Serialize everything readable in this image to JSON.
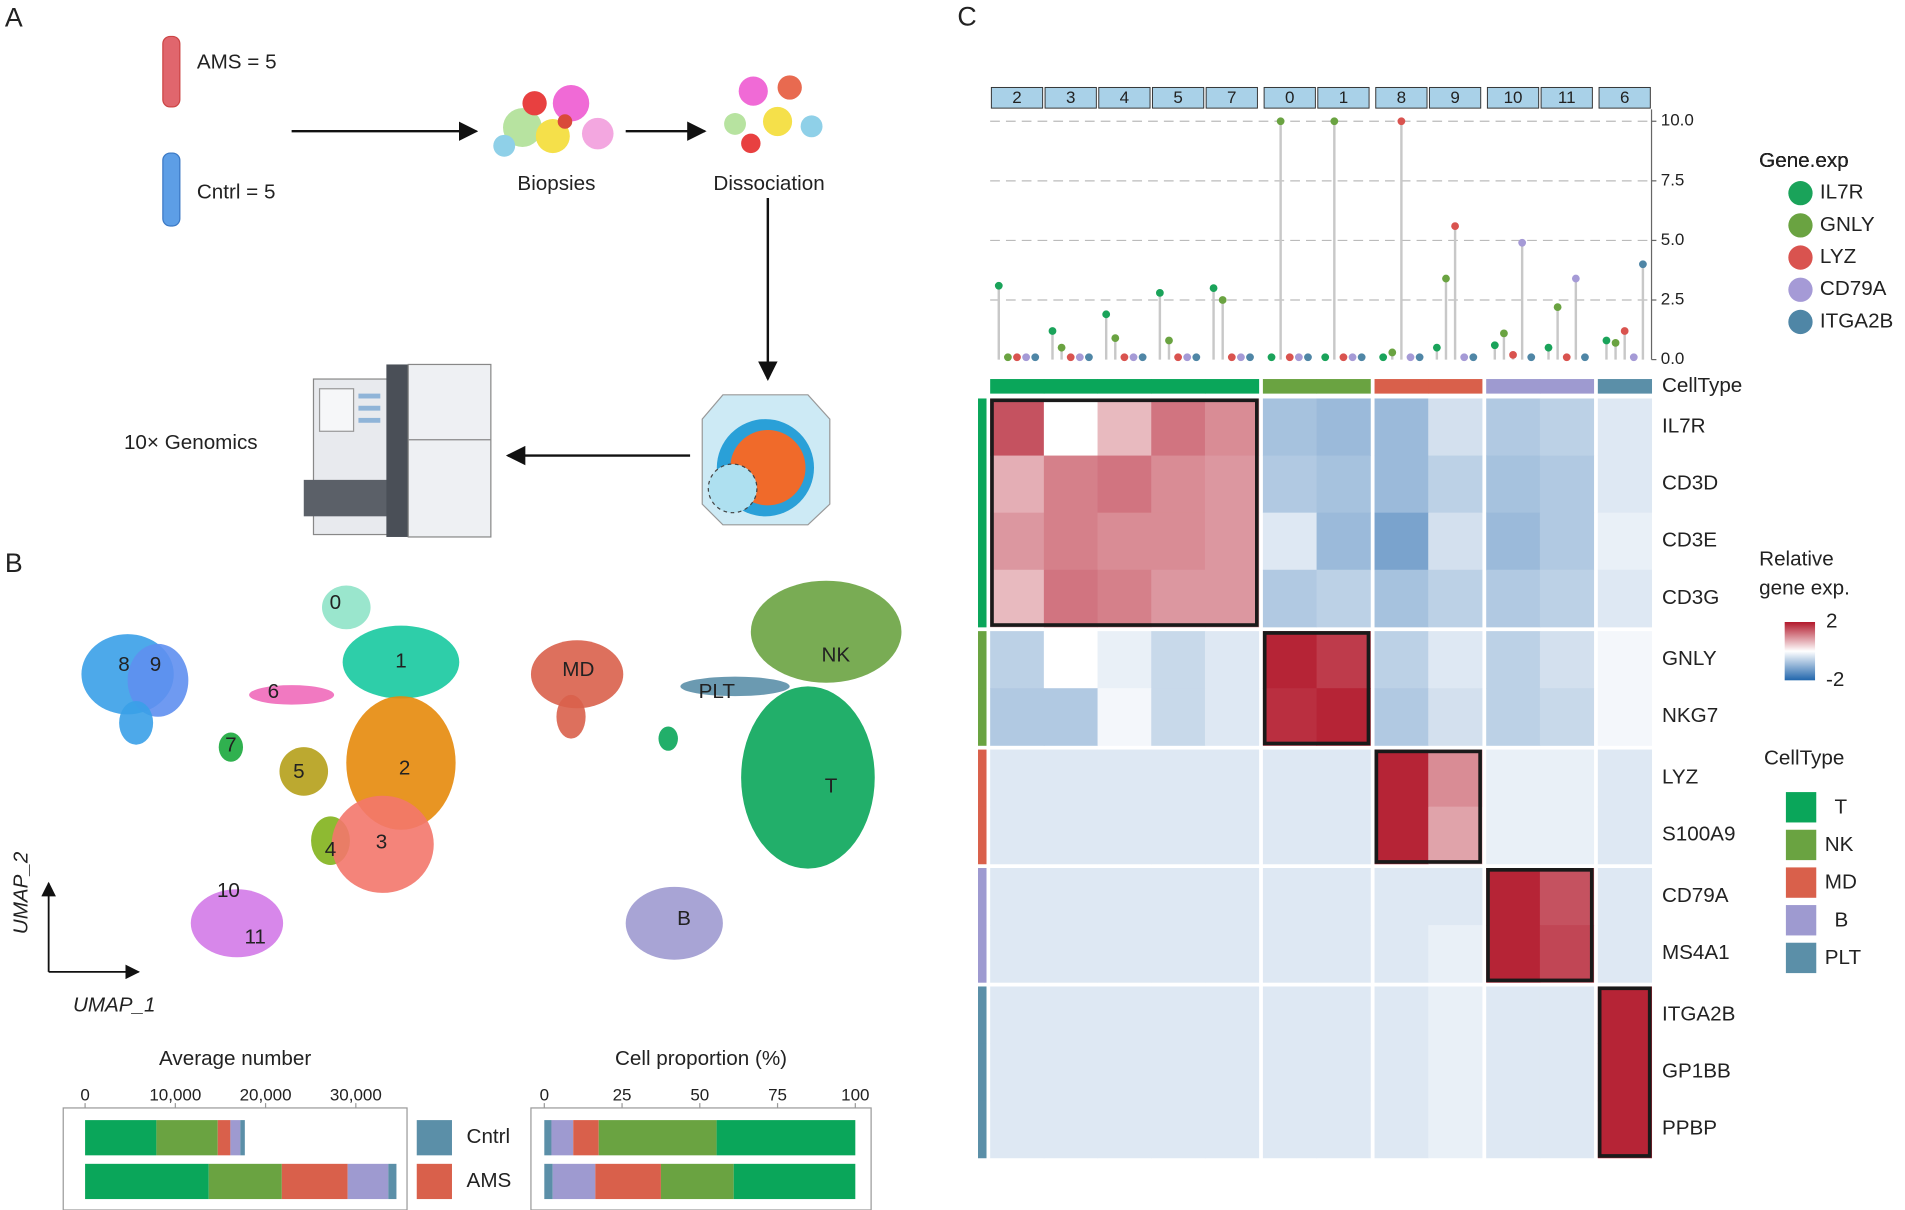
{
  "panel_labels": [
    "A",
    "B",
    "C"
  ],
  "workflow": {
    "ams": "AMS = 5",
    "cntrl": "Cntrl = 5",
    "biopsies": "Biopsies",
    "dissociation": "Dissociation",
    "sequencer": "10× Genomics"
  },
  "umap": {
    "clusters": [
      "0",
      "1",
      "2",
      "3",
      "4",
      "5",
      "6",
      "7",
      "8",
      "9",
      "10",
      "11"
    ],
    "cell_types": [
      "MD",
      "NK",
      "PLT",
      "T",
      "B"
    ],
    "x_label": "UMAP_1",
    "y_label": "UMAP_2"
  },
  "chart_data": [
    {
      "type": "bar",
      "orientation": "horizontal",
      "stacked": true,
      "title": "Average number",
      "categories": [
        "Cntrl",
        "AMS"
      ],
      "category_colors": [
        "#5b8fa8",
        "#d9604b"
      ],
      "series": [
        {
          "color": "#0aa65a",
          "values": [
            7900,
            13700
          ]
        },
        {
          "color": "#6aa341",
          "values": [
            6800,
            8100
          ]
        },
        {
          "color": "#d9604b",
          "values": [
            1400,
            7300
          ]
        },
        {
          "color": "#9e9ad0",
          "values": [
            1100,
            4500
          ]
        },
        {
          "color": "#5b8fa8",
          "values": [
            500,
            900
          ]
        }
      ],
      "xlim": [
        0,
        35000
      ],
      "xticks": [
        0,
        {
          "value": 10000,
          "label": "10,000"
        },
        {
          "value": 20000,
          "label": "20,000"
        },
        {
          "value": 30000,
          "label": "30,000"
        }
      ]
    },
    {
      "type": "bar",
      "orientation": "horizontal",
      "stacked": true,
      "title": "Cell proportion (%)",
      "series": [
        {
          "color": "#5b8fa8",
          "values": [
            2.3,
            2.7
          ]
        },
        {
          "color": "#9e9ad0",
          "values": [
            7,
            13.7
          ]
        },
        {
          "color": "#d9604b",
          "values": [
            8.2,
            21.1
          ]
        },
        {
          "color": "#6aa341",
          "values": [
            37.9,
            23.4
          ]
        },
        {
          "color": "#0aa65a",
          "values": [
            44.6,
            39.1
          ]
        }
      ],
      "xlim": [
        0,
        100
      ],
      "xticks": [
        0,
        25,
        50,
        75,
        100
      ]
    },
    {
      "type": "lollipop",
      "legend_title": "Gene.exp",
      "categories": [
        "2",
        "3",
        "4",
        "5",
        "7",
        "0",
        "1",
        "8",
        "9",
        "10",
        "11",
        "6"
      ],
      "series": [
        {
          "name": "IL7R",
          "color": "#1aa35a",
          "values": [
            3.1,
            1.2,
            1.9,
            2.8,
            3.0,
            0.1,
            0.1,
            0.1,
            0.5,
            0.6,
            0.5,
            0.8
          ]
        },
        {
          "name": "GNLY",
          "color": "#6aa341",
          "values": [
            0.1,
            0.5,
            0.9,
            0.8,
            2.5,
            10.0,
            10.0,
            0.3,
            3.4,
            1.1,
            2.2,
            0.7
          ]
        },
        {
          "name": "LYZ",
          "color": "#d9534f",
          "values": [
            0.1,
            0.1,
            0.1,
            0.1,
            0.1,
            0.1,
            0.1,
            10.0,
            5.6,
            0.2,
            0.1,
            1.2
          ]
        },
        {
          "name": "CD79A",
          "color": "#a59ad6",
          "values": [
            0.1,
            0.1,
            0.1,
            0.1,
            0.1,
            0.1,
            0.1,
            0.1,
            0.1,
            4.9,
            3.4,
            0.1
          ]
        },
        {
          "name": "ITGA2B",
          "color": "#4f86a6",
          "values": [
            0.1,
            0.1,
            0.1,
            0.1,
            0.1,
            0.1,
            0.1,
            0.1,
            0.1,
            0.1,
            0.1,
            4.0
          ]
        }
      ],
      "ylim": [
        0,
        10.5
      ],
      "yticks": [
        {
          "value": 0,
          "label": "0.0"
        },
        2.5,
        {
          "value": 5,
          "label": "5.0"
        },
        7.5,
        {
          "value": 10,
          "label": "10.0"
        }
      ],
      "grid": true
    },
    {
      "type": "heatmap",
      "annotation_label": "CellType",
      "y": [
        "IL7R",
        "CD3D",
        "CD3E",
        "CD3G",
        "GNLY",
        "NKG7",
        "LYZ",
        "S100A9",
        "CD79A",
        "MS4A1",
        "ITGA2B",
        "GP1BB",
        "PPBP"
      ],
      "column_types": [
        "T",
        "T",
        "T",
        "T",
        "T",
        "NK",
        "NK",
        "MD",
        "MD",
        "B",
        "B",
        "PLT"
      ],
      "row_types": [
        "T",
        "T",
        "T",
        "T",
        "NK",
        "NK",
        "MD",
        "MD",
        "B",
        "B",
        "PLT",
        "PLT",
        "PLT"
      ],
      "cell_types": [
        {
          "name": "T",
          "color": "#0aa65a"
        },
        {
          "name": "NK",
          "color": "#6aa341"
        },
        {
          "name": "MD",
          "color": "#d9604b"
        },
        {
          "name": "B",
          "color": "#9e9ad0"
        },
        {
          "name": "PLT",
          "color": "#5b8fa8"
        }
      ],
      "values": [
        [
          1.5,
          0.0,
          0.6,
          1.2,
          1.0,
          -0.8,
          -0.9,
          -0.9,
          -0.4,
          -0.7,
          -0.6,
          -0.3
        ],
        [
          0.7,
          1.1,
          1.2,
          1.0,
          0.9,
          -0.7,
          -0.8,
          -0.9,
          -0.6,
          -0.8,
          -0.7,
          -0.3
        ],
        [
          0.9,
          1.1,
          1.0,
          1.0,
          0.9,
          -0.3,
          -0.9,
          -1.2,
          -0.4,
          -0.9,
          -0.7,
          -0.2
        ],
        [
          0.6,
          1.2,
          1.1,
          0.9,
          0.9,
          -0.7,
          -0.6,
          -0.8,
          -0.6,
          -0.7,
          -0.6,
          -0.3
        ],
        [
          -0.6,
          0.0,
          -0.2,
          -0.5,
          -0.3,
          1.9,
          1.7,
          -0.6,
          -0.3,
          -0.6,
          -0.4,
          -0.1
        ],
        [
          -0.7,
          -0.7,
          -0.1,
          -0.5,
          -0.3,
          1.8,
          1.9,
          -0.7,
          -0.4,
          -0.6,
          -0.5,
          -0.1
        ],
        [
          -0.3,
          -0.3,
          -0.3,
          -0.3,
          -0.3,
          -0.3,
          -0.3,
          1.9,
          1.0,
          -0.2,
          -0.2,
          -0.3
        ],
        [
          -0.3,
          -0.3,
          -0.3,
          -0.3,
          -0.3,
          -0.3,
          -0.3,
          1.9,
          0.8,
          -0.2,
          -0.2,
          -0.3
        ],
        [
          -0.3,
          -0.3,
          -0.3,
          -0.3,
          -0.3,
          -0.3,
          -0.3,
          -0.3,
          -0.3,
          1.9,
          1.5,
          -0.3
        ],
        [
          -0.3,
          -0.3,
          -0.3,
          -0.3,
          -0.3,
          -0.3,
          -0.3,
          -0.3,
          -0.2,
          1.9,
          1.6,
          -0.3
        ],
        [
          -0.3,
          -0.3,
          -0.3,
          -0.3,
          -0.3,
          -0.3,
          -0.3,
          -0.3,
          -0.2,
          -0.3,
          -0.3,
          1.9
        ],
        [
          -0.3,
          -0.3,
          -0.3,
          -0.3,
          -0.3,
          -0.3,
          -0.3,
          -0.3,
          -0.2,
          -0.3,
          -0.3,
          1.9
        ],
        [
          -0.3,
          -0.3,
          -0.3,
          -0.3,
          -0.3,
          -0.3,
          -0.3,
          -0.3,
          -0.2,
          -0.3,
          -0.3,
          1.9
        ]
      ],
      "colorscale": {
        "min": -2,
        "max": 2,
        "colors": [
          "#2166ac",
          "#ffffff",
          "#b2182b"
        ]
      },
      "legend_title": [
        "Relative",
        "gene exp."
      ],
      "legend_ticks": [
        2,
        -2
      ],
      "celltype_legend_title": "CellType"
    }
  ]
}
